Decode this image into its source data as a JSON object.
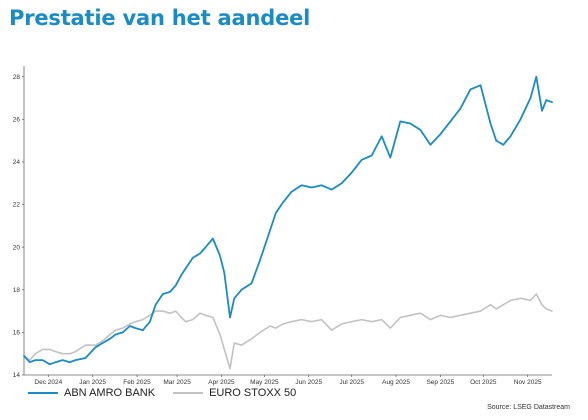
{
  "page": {
    "title": "Prestatie van het aandeel",
    "source": "Source: LSEG Datastream"
  },
  "colors": {
    "title": "#1b8bc4",
    "abn": "#1a8bc3",
    "stoxx": "#c2c2c2"
  },
  "chart_data": {
    "type": "line",
    "title": "",
    "xlabel": "",
    "ylabel": "",
    "ylim": [
      14,
      28.5
    ],
    "y_ticks": [
      "14",
      "16",
      "18",
      "20",
      "22",
      "24",
      "26",
      "28"
    ],
    "x_ticks": [
      "Dec 2024",
      "Jan 2025",
      "Feb 2025",
      "Mar 2025",
      "Apr 2025",
      "May 2025",
      "Jun 2025",
      "Jul 2025",
      "Aug 2025",
      "Sep 2025",
      "Oct 2025",
      "Nov 2025"
    ],
    "x_range": [
      "2024-11-14",
      "2025-11-18"
    ],
    "grid": false,
    "legend_position": "bottom-left",
    "series": [
      {
        "name": "ABN AMRO BANK",
        "color": "#1a8bc3",
        "points": [
          [
            "2024-11-14",
            14.9
          ],
          [
            "2024-11-18",
            14.6
          ],
          [
            "2024-11-22",
            14.7
          ],
          [
            "2024-11-27",
            14.7
          ],
          [
            "2024-12-02",
            14.5
          ],
          [
            "2024-12-06",
            14.6
          ],
          [
            "2024-12-11",
            14.7
          ],
          [
            "2024-12-16",
            14.6
          ],
          [
            "2024-12-20",
            14.7
          ],
          [
            "2024-12-27",
            14.8
          ],
          [
            "2025-01-03",
            15.3
          ],
          [
            "2025-01-08",
            15.5
          ],
          [
            "2025-01-13",
            15.7
          ],
          [
            "2025-01-17",
            15.9
          ],
          [
            "2025-01-22",
            16.0
          ],
          [
            "2025-01-27",
            16.3
          ],
          [
            "2025-01-31",
            16.2
          ],
          [
            "2025-02-05",
            16.1
          ],
          [
            "2025-02-10",
            16.5
          ],
          [
            "2025-02-14",
            17.3
          ],
          [
            "2025-02-19",
            17.8
          ],
          [
            "2025-02-24",
            17.9
          ],
          [
            "2025-02-28",
            18.2
          ],
          [
            "2025-03-04",
            18.7
          ],
          [
            "2025-03-07",
            19.0
          ],
          [
            "2025-03-12",
            19.5
          ],
          [
            "2025-03-17",
            19.7
          ],
          [
            "2025-03-21",
            20.0
          ],
          [
            "2025-03-26",
            20.4
          ],
          [
            "2025-03-31",
            19.6
          ],
          [
            "2025-04-03",
            18.8
          ],
          [
            "2025-04-07",
            16.7
          ],
          [
            "2025-04-10",
            17.6
          ],
          [
            "2025-04-15",
            18.0
          ],
          [
            "2025-04-22",
            18.3
          ],
          [
            "2025-04-28",
            19.4
          ],
          [
            "2025-05-05",
            20.8
          ],
          [
            "2025-05-09",
            21.6
          ],
          [
            "2025-05-14",
            22.1
          ],
          [
            "2025-05-20",
            22.6
          ],
          [
            "2025-05-27",
            22.9
          ],
          [
            "2025-06-03",
            22.8
          ],
          [
            "2025-06-10",
            22.9
          ],
          [
            "2025-06-17",
            22.7
          ],
          [
            "2025-06-24",
            23.0
          ],
          [
            "2025-07-01",
            23.5
          ],
          [
            "2025-07-08",
            24.1
          ],
          [
            "2025-07-15",
            24.3
          ],
          [
            "2025-07-22",
            25.2
          ],
          [
            "2025-07-28",
            24.2
          ],
          [
            "2025-08-04",
            25.9
          ],
          [
            "2025-08-11",
            25.8
          ],
          [
            "2025-08-18",
            25.5
          ],
          [
            "2025-08-25",
            24.8
          ],
          [
            "2025-09-01",
            25.3
          ],
          [
            "2025-09-08",
            25.9
          ],
          [
            "2025-09-15",
            26.5
          ],
          [
            "2025-09-22",
            27.4
          ],
          [
            "2025-09-29",
            27.6
          ],
          [
            "2025-10-06",
            25.8
          ],
          [
            "2025-10-10",
            25.0
          ],
          [
            "2025-10-15",
            24.8
          ],
          [
            "2025-10-20",
            25.2
          ],
          [
            "2025-10-27",
            26.0
          ],
          [
            "2025-11-03",
            27.0
          ],
          [
            "2025-11-07",
            28.0
          ],
          [
            "2025-11-11",
            26.4
          ],
          [
            "2025-11-14",
            26.9
          ],
          [
            "2025-11-18",
            26.8
          ]
        ]
      },
      {
        "name": "EURO STOXX 50",
        "color": "#c2c2c2",
        "points": [
          [
            "2024-11-14",
            14.9
          ],
          [
            "2024-11-18",
            14.7
          ],
          [
            "2024-11-22",
            15.0
          ],
          [
            "2024-11-27",
            15.2
          ],
          [
            "2024-12-02",
            15.2
          ],
          [
            "2024-12-06",
            15.1
          ],
          [
            "2024-12-11",
            15.0
          ],
          [
            "2024-12-16",
            15.0
          ],
          [
            "2024-12-20",
            15.1
          ],
          [
            "2024-12-27",
            15.4
          ],
          [
            "2025-01-03",
            15.4
          ],
          [
            "2025-01-08",
            15.6
          ],
          [
            "2025-01-13",
            15.9
          ],
          [
            "2025-01-17",
            16.1
          ],
          [
            "2025-01-22",
            16.2
          ],
          [
            "2025-01-27",
            16.4
          ],
          [
            "2025-01-31",
            16.5
          ],
          [
            "2025-02-05",
            16.6
          ],
          [
            "2025-02-10",
            16.8
          ],
          [
            "2025-02-14",
            17.0
          ],
          [
            "2025-02-19",
            17.0
          ],
          [
            "2025-02-24",
            16.9
          ],
          [
            "2025-02-28",
            17.0
          ],
          [
            "2025-03-04",
            16.7
          ],
          [
            "2025-03-07",
            16.5
          ],
          [
            "2025-03-12",
            16.6
          ],
          [
            "2025-03-17",
            16.9
          ],
          [
            "2025-03-21",
            16.8
          ],
          [
            "2025-03-26",
            16.7
          ],
          [
            "2025-03-31",
            15.9
          ],
          [
            "2025-04-03",
            15.2
          ],
          [
            "2025-04-07",
            14.3
          ],
          [
            "2025-04-10",
            15.5
          ],
          [
            "2025-04-15",
            15.4
          ],
          [
            "2025-04-22",
            15.7
          ],
          [
            "2025-04-28",
            16.0
          ],
          [
            "2025-05-05",
            16.3
          ],
          [
            "2025-05-09",
            16.2
          ],
          [
            "2025-05-14",
            16.4
          ],
          [
            "2025-05-20",
            16.5
          ],
          [
            "2025-05-27",
            16.6
          ],
          [
            "2025-06-03",
            16.5
          ],
          [
            "2025-06-10",
            16.6
          ],
          [
            "2025-06-17",
            16.1
          ],
          [
            "2025-06-24",
            16.4
          ],
          [
            "2025-07-01",
            16.5
          ],
          [
            "2025-07-08",
            16.6
          ],
          [
            "2025-07-15",
            16.5
          ],
          [
            "2025-07-22",
            16.6
          ],
          [
            "2025-07-28",
            16.2
          ],
          [
            "2025-08-04",
            16.7
          ],
          [
            "2025-08-11",
            16.8
          ],
          [
            "2025-08-18",
            16.9
          ],
          [
            "2025-08-25",
            16.6
          ],
          [
            "2025-09-01",
            16.8
          ],
          [
            "2025-09-08",
            16.7
          ],
          [
            "2025-09-15",
            16.8
          ],
          [
            "2025-09-22",
            16.9
          ],
          [
            "2025-09-29",
            17.0
          ],
          [
            "2025-10-06",
            17.3
          ],
          [
            "2025-10-10",
            17.1
          ],
          [
            "2025-10-15",
            17.3
          ],
          [
            "2025-10-20",
            17.5
          ],
          [
            "2025-10-27",
            17.6
          ],
          [
            "2025-11-03",
            17.5
          ],
          [
            "2025-11-07",
            17.8
          ],
          [
            "2025-11-11",
            17.3
          ],
          [
            "2025-11-14",
            17.1
          ],
          [
            "2025-11-18",
            17.0
          ]
        ]
      }
    ]
  }
}
